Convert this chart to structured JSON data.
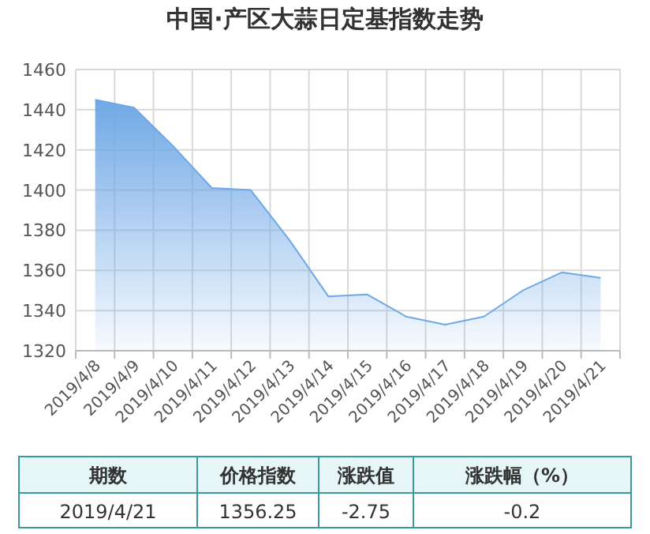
{
  "chart_data": {
    "type": "area",
    "title": "中国·产区大蒜日定基指数走势",
    "categories": [
      "2019/4/8",
      "2019/4/9",
      "2019/4/10",
      "2019/4/11",
      "2019/4/12",
      "2019/4/13",
      "2019/4/14",
      "2019/4/15",
      "2019/4/16",
      "2019/4/17",
      "2019/4/18",
      "2019/4/19",
      "2019/4/20",
      "2019/4/21"
    ],
    "series": [
      {
        "color": "#6fa8e6",
        "values": [
          1445,
          1441,
          1422,
          1401,
          1400,
          1375,
          1347,
          1348,
          1337,
          1333,
          1337,
          1350,
          1359,
          1356.25
        ]
      }
    ],
    "ylim": [
      1320,
      1460
    ],
    "yticks": [
      1320,
      1340,
      1360,
      1380,
      1400,
      1420,
      1440,
      1460
    ],
    "grid": true,
    "annotations": [
      "期数",
      "价格指数",
      "涨跌值",
      "涨跌幅（%）",
      "2019/4/21",
      "1356.25",
      "-2.75",
      "-0.2"
    ]
  }
}
